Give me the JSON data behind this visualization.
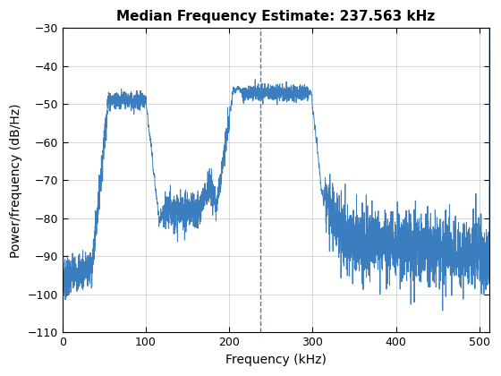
{
  "title": "Median Frequency Estimate: 237.563 kHz",
  "xlabel": "Frequency (kHz)",
  "ylabel": "Power/frequency (dB/Hz)",
  "xlim": [
    0,
    512
  ],
  "ylim": [
    -110,
    -30
  ],
  "yticks": [
    -110,
    -100,
    -90,
    -80,
    -70,
    -60,
    -50,
    -40,
    -30
  ],
  "xticks": [
    0,
    100,
    200,
    300,
    400,
    500
  ],
  "median_freq": 237.563,
  "line_color": "#3a7ebf",
  "dashed_color": "#3a7ebf",
  "bg_color": "#ffffff",
  "grid_color": "#d0d0d0"
}
